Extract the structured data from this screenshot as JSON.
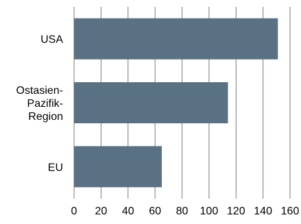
{
  "chart_data": {
    "type": "bar",
    "orientation": "horizontal",
    "categories": [
      [
        "USA"
      ],
      [
        "Ostasien-",
        "Pazifik-",
        "Region"
      ],
      [
        "EU"
      ]
    ],
    "values": [
      151,
      114,
      65
    ],
    "xlim": [
      0,
      160
    ],
    "xticks": [
      0,
      20,
      40,
      60,
      80,
      100,
      120,
      140,
      160
    ],
    "grid": "vertical",
    "title": "",
    "xlabel": "",
    "ylabel": "",
    "colors": {
      "bar": "#5a7184",
      "grid": "#7a7a7a",
      "text": "#000000"
    }
  }
}
